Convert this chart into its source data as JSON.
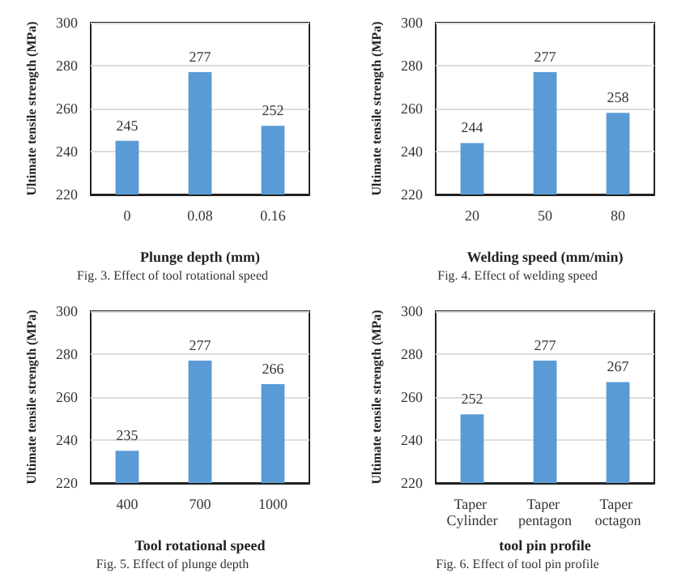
{
  "chart_data": [
    {
      "type": "bar",
      "categories": [
        "0",
        "0.08",
        "0.16"
      ],
      "values": [
        245,
        277,
        252
      ],
      "color": "#5b9bd5",
      "ylim": [
        220,
        300
      ],
      "yticks": [
        220,
        240,
        260,
        280,
        300
      ],
      "grid": "y",
      "data_labels": true,
      "xlabel": "Plunge depth (mm)",
      "ylabel": "Ultimate tensile strength (MPa)",
      "annotations": [
        "Fig. 3. Effect of tool rotational speed"
      ]
    },
    {
      "type": "bar",
      "categories": [
        "20",
        "50",
        "80"
      ],
      "values": [
        244,
        277,
        258
      ],
      "color": "#5b9bd5",
      "ylim": [
        220,
        300
      ],
      "yticks": [
        220,
        240,
        260,
        280,
        300
      ],
      "grid": "y",
      "data_labels": true,
      "xlabel": "Welding speed (mm/min)",
      "ylabel": "Ultimate tensile strength (MPa)",
      "annotations": [
        "Fig. 4. Effect of welding speed"
      ]
    },
    {
      "type": "bar",
      "categories": [
        "400",
        "700",
        "1000"
      ],
      "values": [
        235,
        277,
        266
      ],
      "color": "#5b9bd5",
      "ylim": [
        220,
        300
      ],
      "yticks": [
        220,
        240,
        260,
        280,
        300
      ],
      "grid": "y",
      "data_labels": true,
      "xlabel": "Tool rotational speed",
      "ylabel": "Ultimate tensile strength (MPa)",
      "annotations": [
        "Fig. 5. Effect of plunge depth"
      ]
    },
    {
      "type": "bar",
      "categories": [
        "Taper Cylinder",
        "Taper pentagon",
        "Taper octagon"
      ],
      "values": [
        252,
        277,
        267
      ],
      "color": "#5b9bd5",
      "ylim": [
        220,
        300
      ],
      "yticks": [
        220,
        240,
        260,
        280,
        300
      ],
      "grid": "y",
      "data_labels": true,
      "xlabel": "tool pin profile",
      "ylabel": "Ultimate tensile strength (MPa)",
      "annotations": [
        "Fig. 6. Effect of tool pin profile"
      ]
    }
  ]
}
